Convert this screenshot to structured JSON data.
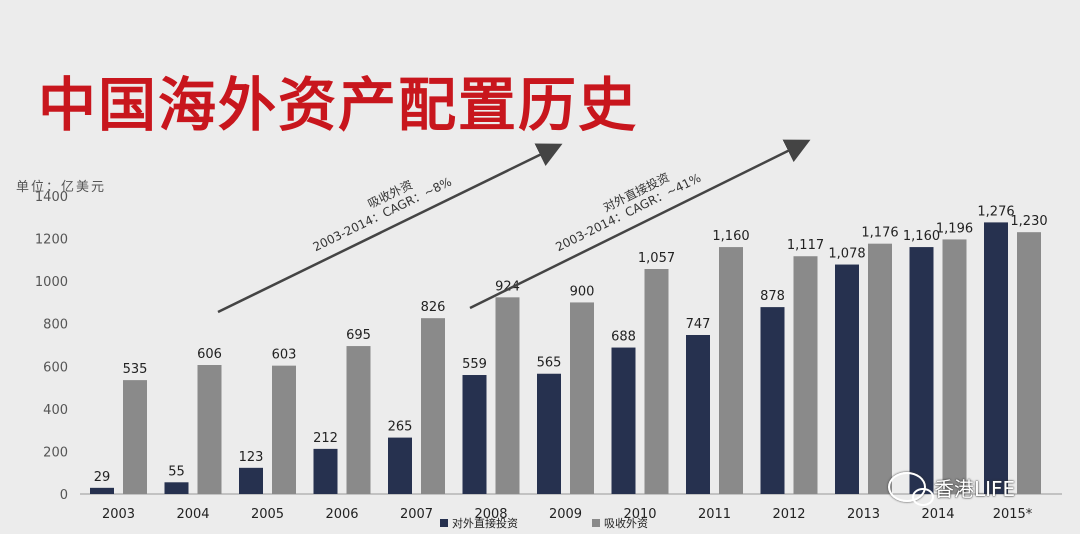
{
  "title": "中国海外资产配置历史",
  "unit_label": "单位：亿美元",
  "watermark": "香港LIFE",
  "colors": {
    "title": "#c8161d",
    "series_a": "#26314f",
    "series_b": "#8a8a8a",
    "axis": "#555555"
  },
  "chart_data": {
    "type": "bar",
    "categories": [
      "2003",
      "2004",
      "2005",
      "2006",
      "2007",
      "2008",
      "2009",
      "2010",
      "2011",
      "2012",
      "2013",
      "2014",
      "2015*"
    ],
    "series": [
      {
        "name": "对外直接投资",
        "values": [
          29,
          55,
          123,
          212,
          265,
          559,
          565,
          688,
          747,
          878,
          1078,
          1160,
          1276
        ],
        "labels": [
          "29",
          "55",
          "123",
          "212",
          "265",
          "559",
          "565",
          "688",
          "747",
          "878",
          "1,078",
          "1,160",
          "1,276"
        ]
      },
      {
        "name": "吸收外资",
        "values": [
          535,
          606,
          603,
          695,
          826,
          924,
          900,
          1057,
          1160,
          1117,
          1176,
          1196,
          1230
        ],
        "labels": [
          "535",
          "606",
          "603",
          "695",
          "826",
          "924",
          "900",
          "1,057",
          "1,160",
          "1,117",
          "1,176",
          "1,196",
          "1,230"
        ]
      }
    ],
    "ylim": [
      0,
      1400
    ],
    "yticks": [
      "0",
      "200",
      "400",
      "600",
      "800",
      "1000",
      "1200",
      "1400"
    ],
    "annotations": [
      {
        "line1": "吸收外资",
        "line2": "2003-2014：CAGR：~8%"
      },
      {
        "line1": "对外直接投资",
        "line2": "2003-2014：CAGR：~41%"
      }
    ],
    "legend_position": "bottom",
    "grid": false
  }
}
